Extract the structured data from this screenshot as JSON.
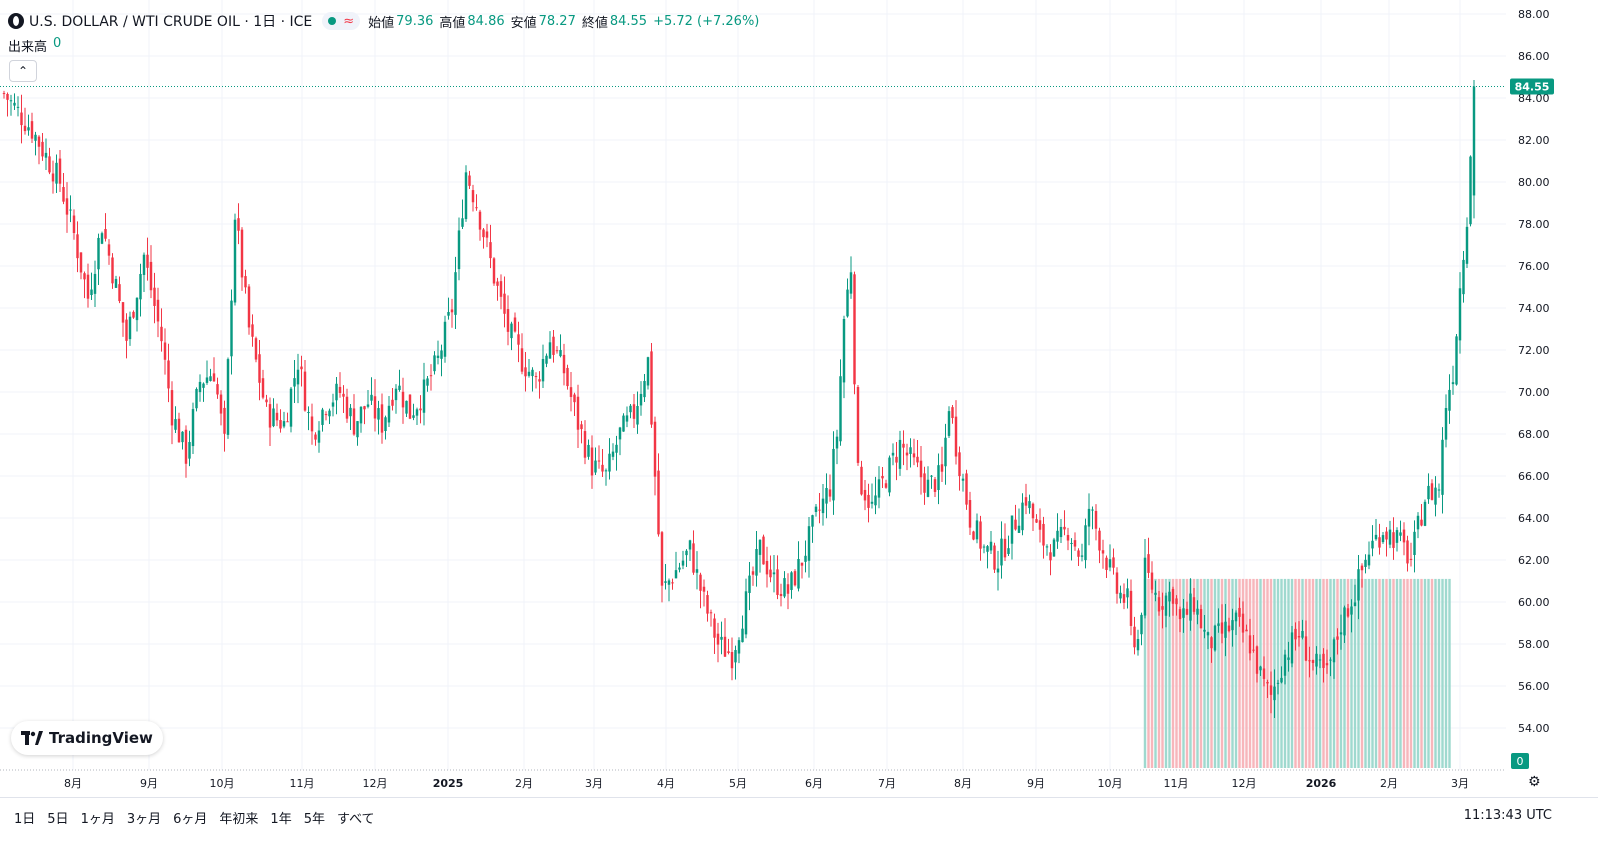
{
  "legend": {
    "symbol_title": "U.S. DOLLAR / WTI CRUDE OIL · 1日 · ICE",
    "symbol_icon": "droplet-icon",
    "open_label": "始値",
    "open_value": "79.36",
    "high_label": "高値",
    "high_value": "84.86",
    "low_label": "安値",
    "low_value": "78.27",
    "close_label": "終値",
    "close_value": "84.55",
    "change": "+5.72 (+7.26%)",
    "volume_label": "出来高",
    "volume_value": "0"
  },
  "brand": {
    "name": "TradingView"
  },
  "bottom_bar": {
    "ranges": [
      "1日",
      "5日",
      "1ヶ月",
      "3ヶ月",
      "6ヶ月",
      "年初来",
      "1年",
      "5年",
      "すべて"
    ],
    "clock": "11:13:43 UTC"
  },
  "colors": {
    "up": "#089981",
    "down": "#f23645",
    "grid": "#f0f3fa",
    "text": "#131722"
  },
  "chart_data": {
    "type": "candlestick",
    "y_range": [
      52.0,
      89.0
    ],
    "y_ticks": [
      "54.00",
      "56.00",
      "58.00",
      "60.00",
      "62.00",
      "64.00",
      "66.00",
      "68.00",
      "70.00",
      "72.00",
      "74.00",
      "76.00",
      "78.00",
      "80.00",
      "82.00",
      "84.00",
      "86.00",
      "88.00"
    ],
    "x_ticks": [
      "8月",
      "9月",
      "10月",
      "11月",
      "12月",
      "2025",
      "2月",
      "3月",
      "4月",
      "5月",
      "6月",
      "7月",
      "8月",
      "9月",
      "10月",
      "11月",
      "12月",
      "2026",
      "2月",
      "3月"
    ],
    "last_price": "84.55",
    "volume_last": "0",
    "price_path": [
      [
        0,
        84.2
      ],
      [
        8,
        82.5
      ],
      [
        16,
        80.0
      ],
      [
        20,
        77.5
      ],
      [
        24,
        74.5
      ],
      [
        28,
        78.0
      ],
      [
        32,
        75.0
      ],
      [
        35,
        72.5
      ],
      [
        40,
        76.5
      ],
      [
        45,
        72.5
      ],
      [
        48,
        69.0
      ],
      [
        52,
        67.0
      ],
      [
        56,
        70.5
      ],
      [
        60,
        71.0
      ],
      [
        63,
        67.5
      ],
      [
        66,
        78.5
      ],
      [
        70,
        73.0
      ],
      [
        75,
        69.0
      ],
      [
        80,
        68.5
      ],
      [
        84,
        71.5
      ],
      [
        88,
        68.0
      ],
      [
        92,
        69.5
      ],
      [
        96,
        70.0
      ],
      [
        100,
        68.5
      ],
      [
        104,
        69.5
      ],
      [
        108,
        68.5
      ],
      [
        112,
        70.5
      ],
      [
        116,
        69.0
      ],
      [
        120,
        70.0
      ],
      [
        124,
        71.5
      ],
      [
        128,
        74.0
      ],
      [
        132,
        80.5
      ],
      [
        135,
        79.0
      ],
      [
        140,
        75.5
      ],
      [
        144,
        73.0
      ],
      [
        148,
        71.5
      ],
      [
        152,
        70.5
      ],
      [
        156,
        72.5
      ],
      [
        160,
        71.0
      ],
      [
        164,
        68.5
      ],
      [
        168,
        66.5
      ],
      [
        172,
        66.0
      ],
      [
        176,
        68.0
      ],
      [
        180,
        69.0
      ],
      [
        184,
        71.5
      ],
      [
        188,
        60.5
      ],
      [
        192,
        61.5
      ],
      [
        196,
        62.5
      ],
      [
        200,
        60.0
      ],
      [
        204,
        58.0
      ],
      [
        208,
        57.5
      ],
      [
        212,
        60.0
      ],
      [
        216,
        62.5
      ],
      [
        220,
        61.0
      ],
      [
        224,
        60.5
      ],
      [
        228,
        62.0
      ],
      [
        232,
        64.0
      ],
      [
        236,
        65.5
      ],
      [
        238,
        68.0
      ],
      [
        240,
        73.5
      ],
      [
        242,
        76.0
      ],
      [
        244,
        66.0
      ],
      [
        248,
        64.5
      ],
      [
        252,
        66.0
      ],
      [
        256,
        67.5
      ],
      [
        260,
        66.5
      ],
      [
        264,
        65.5
      ],
      [
        268,
        66.0
      ],
      [
        270,
        69.5
      ],
      [
        272,
        67.5
      ],
      [
        276,
        64.0
      ],
      [
        280,
        62.5
      ],
      [
        284,
        62.0
      ],
      [
        288,
        63.5
      ],
      [
        292,
        65.0
      ],
      [
        296,
        63.0
      ],
      [
        300,
        62.5
      ],
      [
        304,
        63.5
      ],
      [
        308,
        62.0
      ],
      [
        310,
        64.5
      ],
      [
        314,
        62.5
      ],
      [
        318,
        60.5
      ],
      [
        321,
        60.0
      ],
      [
        322,
        58.5
      ],
      [
        324,
        58.2
      ],
      [
        326,
        61.5
      ],
      [
        330,
        60.0
      ],
      [
        334,
        60.5
      ],
      [
        336,
        59.0
      ],
      [
        340,
        60.0
      ],
      [
        344,
        58.0
      ],
      [
        348,
        58.5
      ],
      [
        352,
        59.0
      ],
      [
        356,
        58.0
      ],
      [
        360,
        56.0
      ],
      [
        362,
        55.5
      ],
      [
        366,
        57.5
      ],
      [
        370,
        58.5
      ],
      [
        374,
        57.0
      ],
      [
        378,
        56.5
      ],
      [
        382,
        59.0
      ],
      [
        386,
        60.5
      ],
      [
        390,
        62.5
      ],
      [
        394,
        63.5
      ],
      [
        398,
        63.0
      ],
      [
        402,
        62.0
      ],
      [
        406,
        65.0
      ],
      [
        410,
        65.5
      ],
      [
        412,
        69.5
      ],
      [
        414,
        71.0
      ],
      [
        416,
        75.0
      ],
      [
        418,
        78.5
      ],
      [
        420,
        84.55
      ]
    ],
    "volume_bars_start_index": 326,
    "volume_bars_end_index": 413,
    "volume_bar_level": 61.1
  }
}
